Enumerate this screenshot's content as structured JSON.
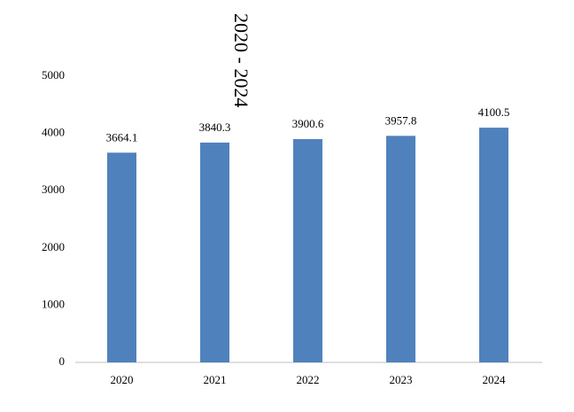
{
  "chart_data": {
    "type": "bar",
    "title": "2020 - 2024",
    "categories": [
      "2020",
      "2021",
      "2022",
      "2023",
      "2024"
    ],
    "values": [
      3664.1,
      3840.3,
      3900.6,
      3957.8,
      4100.5
    ],
    "color": "#4f81bd",
    "ylim": [
      0,
      5000
    ],
    "yticks": [
      0,
      1000,
      2000,
      3000,
      4000,
      5000
    ],
    "grid": false
  }
}
